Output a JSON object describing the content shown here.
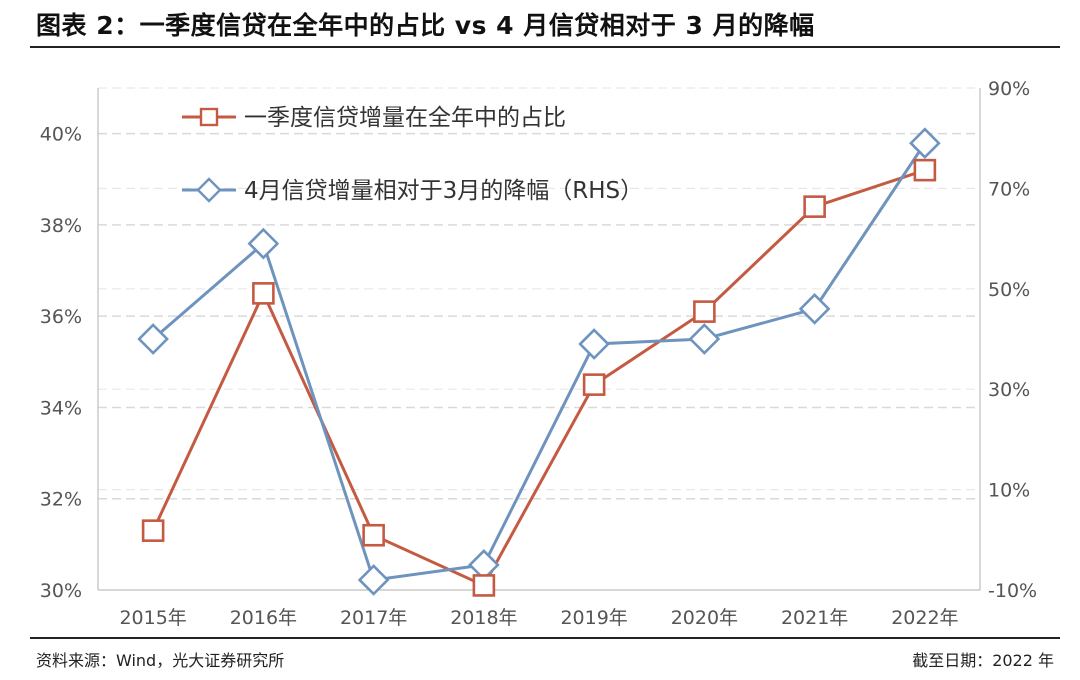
{
  "header": {
    "title": "图表 2：一季度信贷在全年中的占比  vs 4 月信贷相对于 3 月的降幅"
  },
  "footer": {
    "source": "资料来源：Wind，光大证券研究所",
    "date_note": "截至日期：2022 年"
  },
  "colors": {
    "series_share": "#C55A43",
    "series_decline": "#6E94BE",
    "grid": "#D9D9D9",
    "axis_text": "#555555"
  },
  "chart_data": {
    "type": "line",
    "categories": [
      "2015年",
      "2016年",
      "2017年",
      "2018年",
      "2019年",
      "2020年",
      "2021年",
      "2022年"
    ],
    "y_left": {
      "ylim": [
        30,
        41
      ],
      "ticks": [
        30,
        32,
        34,
        36,
        38,
        40
      ],
      "tick_labels": [
        "30%",
        "32%",
        "34%",
        "36%",
        "38%",
        "40%"
      ]
    },
    "y_right": {
      "ylim": [
        -10,
        90
      ],
      "ticks": [
        -10,
        10,
        30,
        50,
        70,
        90
      ],
      "tick_labels": [
        "-10%",
        "10%",
        "30%",
        "50%",
        "70%",
        "90%"
      ]
    },
    "grid": true,
    "legend_position": "top-left",
    "series": [
      {
        "name": "一季度信贷增量在全年中的占比",
        "axis": "left",
        "marker": "square",
        "values": [
          31.3,
          36.5,
          31.2,
          30.1,
          34.5,
          36.1,
          38.4,
          39.2
        ]
      },
      {
        "name": "4月信贷增量相对于3月的降幅（RHS）",
        "axis": "right",
        "marker": "diamond",
        "values": [
          40,
          59,
          -8,
          -5,
          39,
          40,
          46,
          79
        ]
      }
    ]
  }
}
